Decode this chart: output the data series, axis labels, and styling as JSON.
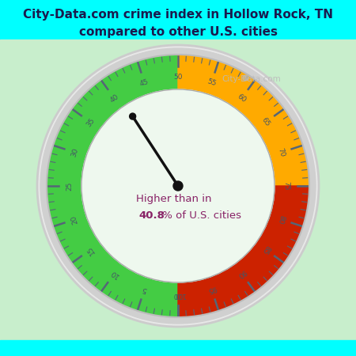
{
  "title_line1": "City-Data.com crime index in Hollow Rock, TN",
  "title_line2": "compared to other U.S. cities",
  "title_color": "#1a1a4e",
  "title_bg_color": "#00FFFF",
  "gauge_area_bg": "#c8eecc",
  "bottom_bg_color": "#00FFFF",
  "center_text_line1": "Higher than in",
  "center_text_bold": "40.8",
  "center_text_rest": " % of U.S. cities",
  "center_text_color": "#882266",
  "value": 40.8,
  "green_color": "#44cc44",
  "orange_color": "#ffaa00",
  "red_color": "#cc2200",
  "needle_color": "#111111",
  "tick_color": "#556677",
  "tick_label_color": "#445566",
  "outer_ring_bg": "#dddddd",
  "inner_bg": "#eef8ee",
  "watermark_color": "#bbbbbb",
  "watermark_text": "City-Data.com"
}
